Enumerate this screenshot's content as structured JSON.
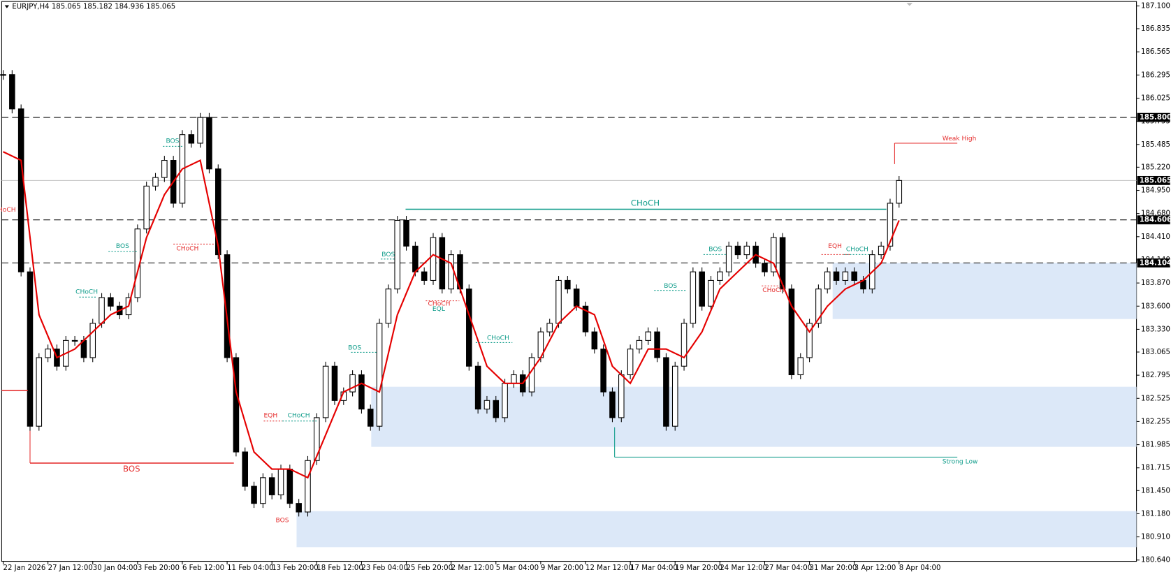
{
  "header": "EURJPY,H4  185.065 185.182 184.936 185.065",
  "chart_data": {
    "type": "candlestick",
    "ylim": [
      180.625,
      187.152
    ],
    "yticks": [
      {
        "value": 187.1,
        "label": "187.100"
      },
      186.835,
      186.565,
      186.295,
      186.025,
      185.755,
      185.485,
      {
        "value": 185.22,
        "label": "185.220"
      },
      {
        "value": 184.95,
        "label": "184.950"
      },
      {
        "value": 184.68,
        "label": "184.680"
      },
      {
        "value": 184.41,
        "label": "184.410"
      },
      {
        "value": 184.14,
        "label": "184.140"
      },
      {
        "value": 183.87,
        "label": "183.870"
      },
      {
        "value": 183.6,
        "label": "183.600"
      },
      {
        "value": 183.33,
        "label": "183.330"
      },
      183.065,
      182.795,
      182.525,
      182.255,
      181.985,
      181.715,
      {
        "value": 181.45,
        "label": "181.450"
      },
      {
        "value": 181.18,
        "label": "181.180"
      },
      {
        "value": 180.91,
        "label": "180.910"
      },
      {
        "value": 180.64,
        "label": "180.640"
      }
    ],
    "x_labels": [
      "22 Jan 2026",
      "27 Jan 12:00",
      "30 Jan 04:00",
      "3 Feb 20:00",
      "6 Feb 12:00",
      "11 Feb 04:00",
      "13 Feb 20:00",
      "18 Feb 12:00",
      "23 Feb 04:00",
      "25 Feb 20:00",
      "2 Mar 12:00",
      "5 Mar 04:00",
      "9 Mar 20:00",
      "12 Mar 12:00",
      "17 Mar 04:00",
      "19 Mar 20:00",
      "24 Mar 12:00",
      "27 Mar 04:00",
      "31 Mar 20:00",
      "3 Apr 12:00",
      "8 Apr 04:00"
    ],
    "close": [
      186.3,
      185.9,
      184.0,
      182.2,
      183.0,
      183.1,
      182.9,
      183.2,
      183.2,
      183.0,
      183.4,
      183.7,
      183.6,
      183.5,
      183.7,
      184.5,
      185.0,
      185.1,
      185.3,
      184.8,
      185.6,
      185.5,
      185.8,
      185.2,
      184.2,
      183.0,
      181.9,
      181.5,
      181.3,
      181.6,
      181.4,
      181.7,
      181.3,
      181.2,
      181.8,
      182.3,
      182.9,
      182.5,
      182.6,
      182.8,
      182.4,
      182.2,
      183.4,
      183.8,
      184.6,
      184.3,
      184.0,
      183.9,
      184.4,
      183.8,
      184.2,
      183.8,
      182.9,
      182.4,
      182.5,
      182.3,
      182.7,
      182.8,
      182.6,
      183.0,
      183.3,
      183.4,
      183.9,
      183.8,
      183.6,
      183.3,
      183.1,
      182.6,
      182.3,
      182.8,
      183.1,
      183.2,
      183.3,
      183.0,
      182.2,
      182.9,
      183.4,
      184.0,
      183.6,
      183.9,
      184.0,
      184.3,
      184.2,
      184.3,
      184.1,
      184.0,
      184.4,
      183.8,
      182.8,
      183.0,
      183.4,
      183.8,
      184.0,
      183.9,
      184.0,
      183.9,
      183.8,
      184.2,
      184.3,
      184.8,
      185.065
    ],
    "ma": [
      185.4,
      185.3,
      183.5,
      183.0,
      183.1,
      183.3,
      183.5,
      183.6,
      184.4,
      184.9,
      185.2,
      185.3,
      184.3,
      182.6,
      181.9,
      181.7,
      181.7,
      181.6,
      182.1,
      182.6,
      182.7,
      182.6,
      183.5,
      184.0,
      184.2,
      184.1,
      183.5,
      182.9,
      182.7,
      182.7,
      183.0,
      183.4,
      183.6,
      183.5,
      182.9,
      182.7,
      183.1,
      183.1,
      183.0,
      183.3,
      183.8,
      184.0,
      184.2,
      184.1,
      183.6,
      183.3,
      183.6,
      183.8,
      183.9,
      184.1,
      184.6
    ],
    "ma_color": "#e50000",
    "levels": [
      {
        "value": 185.8,
        "label": "185.800"
      },
      184.606,
      184.104
    ],
    "current": {
      "value": 185.065,
      "label": "185.065"
    },
    "zones": [
      [
        184.104,
        183.45
      ],
      [
        182.66,
        181.96
      ],
      [
        181.21,
        180.79
      ]
    ],
    "zone_color": "#dce8f8",
    "weak_high": {
      "label": "Weak High",
      "price": 185.5
    },
    "strong_low": {
      "label": "Strong Low",
      "price": 181.84
    },
    "choch_line": {
      "label": "CHoCH",
      "price": 184.73
    },
    "bos_line": {
      "label": "BOS",
      "price": 181.77
    },
    "marks": [
      "BOS",
      "BOS",
      "CHoCH",
      "CHoCH",
      "EQH",
      "CHoCH",
      "BOS",
      "BOS",
      "BOS",
      "CHoCH",
      "EQL",
      "CHoCH",
      "BOS",
      "BOS",
      "CHoCH",
      "EQH",
      "CHoCH",
      "CHoCH"
    ]
  }
}
